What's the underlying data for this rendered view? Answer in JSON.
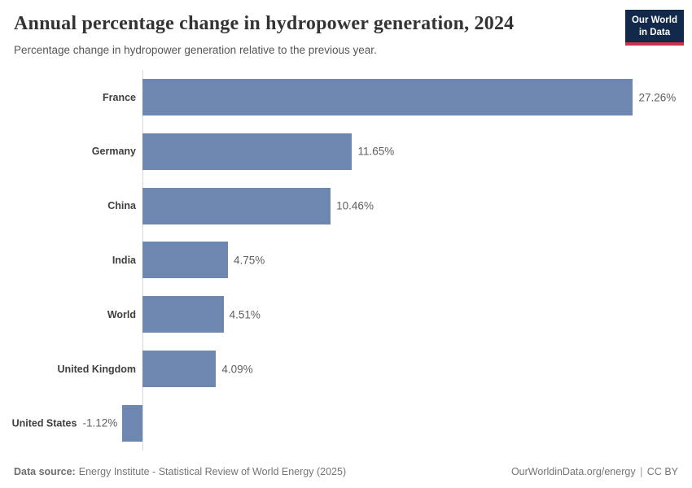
{
  "header": {
    "title": "Annual percentage change in hydropower generation, 2024",
    "subtitle": "Percentage change in hydropower generation relative to the previous year.",
    "logo_line1": "Our World",
    "logo_line2": "in Data"
  },
  "chart_data": {
    "type": "bar",
    "orientation": "horizontal",
    "title": "Annual percentage change in hydropower generation, 2024",
    "xlabel": "",
    "ylabel": "",
    "categories": [
      "France",
      "Germany",
      "China",
      "India",
      "World",
      "United Kingdom",
      "United States"
    ],
    "values": [
      27.26,
      11.65,
      10.46,
      4.75,
      4.51,
      4.09,
      -1.12
    ],
    "value_labels": [
      "27.26%",
      "11.65%",
      "10.46%",
      "4.75%",
      "4.51%",
      "4.09%",
      "-1.12%"
    ],
    "unit": "%",
    "xlim": [
      -1.12,
      27.26
    ],
    "grid": false,
    "legend": false,
    "bar_color": "#6d87b0"
  },
  "footer": {
    "source_label": "Data source:",
    "source_value": "Energy Institute - Statistical Review of World Energy (2025)",
    "url": "OurWorldinData.org/energy",
    "separator": "|",
    "license": "CC BY"
  },
  "colors": {
    "bar": "#6d87b0",
    "axis_line": "#d7d7d7",
    "title_text": "#333333",
    "subtitle_text": "#555555",
    "category_text": "#3f3f3f",
    "value_text": "#5f5f5f",
    "footer_text": "#757575",
    "logo_background": "#12294b",
    "logo_stripe": "#cb3245",
    "background": "#ffffff"
  }
}
